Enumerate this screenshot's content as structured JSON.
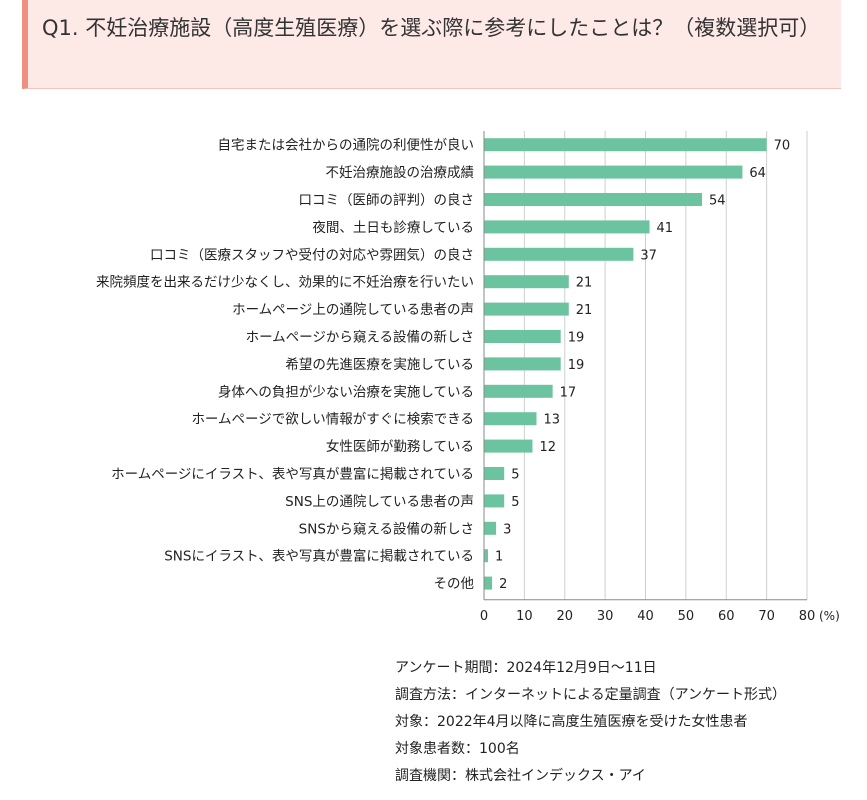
{
  "header": {
    "question": "Q1. 不妊治療施設（高度生殖医療）を選ぶ際に参考にしたことは？（複数選択可）"
  },
  "chart_data": {
    "type": "bar",
    "orientation": "horizontal",
    "categories": [
      "自宅または会社からの通院の利便性が良い",
      "不妊治療施設の治療成績",
      "口コミ（医師の評判）の良さ",
      "夜間、土日も診療している",
      "口コミ（医療スタッフや受付の対応や雰囲気）の良さ",
      "来院頻度を出来るだけ少なくし、効果的に不妊治療を行いたい",
      "ホームページ上の通院している患者の声",
      "ホームページから窺える設備の新しさ",
      "希望の先進医療を実施している",
      "身体への負担が少ない治療を実施している",
      "ホームページで欲しい情報がすぐに検索できる",
      "女性医師が勤務している",
      "ホームページにイラスト、表や写真が豊富に掲載されている",
      "SNS上の通院している患者の声",
      "SNSから窺える設備の新しさ",
      "SNSにイラスト、表や写真が豊富に掲載されている",
      "その他"
    ],
    "values": [
      70,
      64,
      54,
      41,
      37,
      21,
      21,
      19,
      19,
      17,
      13,
      12,
      5,
      5,
      3,
      1,
      2
    ],
    "xlim": [
      0,
      80
    ],
    "xticks": [
      0,
      10,
      20,
      30,
      40,
      50,
      60,
      70,
      80
    ],
    "unit": "(%)",
    "bar_color": "#6cc3a0",
    "grid": true
  },
  "survey": {
    "period": "アンケート期間：2024年12月9日～11日",
    "method": "調査方法：インターネットによる定量調査（アンケート形式）",
    "target": "対象：2022年4月以降に高度生殖医療を受けた女性患者",
    "count": "対象患者数：100名",
    "org": "調査機関：株式会社インデックス・アイ"
  }
}
